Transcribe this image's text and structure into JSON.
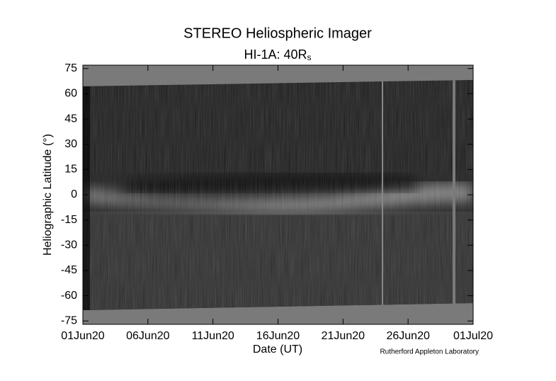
{
  "chart_data": {
    "type": "image",
    "title": "STEREO Heliospheric Imager",
    "subtitle": {
      "text": "HI-1A: 40R",
      "subscript": "s"
    },
    "x_label": "Date (UT)",
    "y_label": "Heliographic Latitude (°)",
    "credit": "Rutherford Appleton Laboratory",
    "xlim": [
      "2020-06-01",
      "2020-07-01"
    ],
    "xticks": [
      {
        "value": "2020-06-01",
        "label": "01Jun20"
      },
      {
        "value": "2020-06-06",
        "label": "06Jun20"
      },
      {
        "value": "2020-06-11",
        "label": "11Jun20"
      },
      {
        "value": "2020-06-16",
        "label": "16Jun20"
      },
      {
        "value": "2020-06-21",
        "label": "21Jun20"
      },
      {
        "value": "2020-06-26",
        "label": "26Jun20"
      },
      {
        "value": "2020-07-01",
        "label": "01Jul20"
      }
    ],
    "ylim": [
      -77,
      77
    ],
    "yticks": [
      -75,
      -60,
      -45,
      -30,
      -15,
      0,
      15,
      30,
      45,
      60,
      75
    ],
    "coverage": {
      "upper": [
        64.4,
        68.2
      ],
      "lower": [
        -68.6,
        -64.4
      ]
    }
  }
}
